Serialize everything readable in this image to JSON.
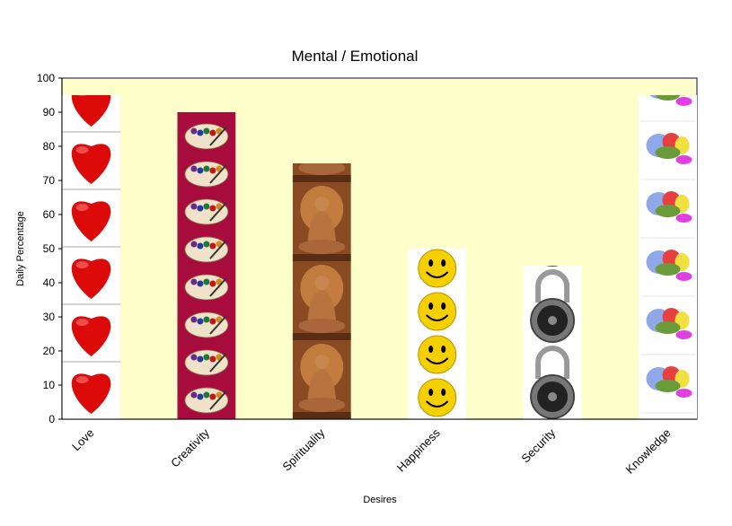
{
  "chart_data": {
    "type": "bar",
    "title": "Mental / Emotional",
    "xlabel": "Desires",
    "ylabel": "Daily Percentage",
    "ylim": [
      0,
      100
    ],
    "yticks": [
      0,
      10,
      20,
      30,
      40,
      50,
      60,
      70,
      80,
      90,
      100
    ],
    "grid": false,
    "legend": "none",
    "categories": [
      "Love",
      "Creativity",
      "Spirituality",
      "Happiness",
      "Security",
      "Knowledge"
    ],
    "values": [
      95,
      90,
      75,
      50,
      45,
      95
    ],
    "bar_images": [
      "heart-icon",
      "paint-palette-icon",
      "buddha-icon",
      "smiley-face-icon",
      "combination-lock-icon",
      "brain-diagram-icon"
    ],
    "colors": {
      "plot_background": "#FFFFCC",
      "plot_border": "#333366"
    }
  }
}
